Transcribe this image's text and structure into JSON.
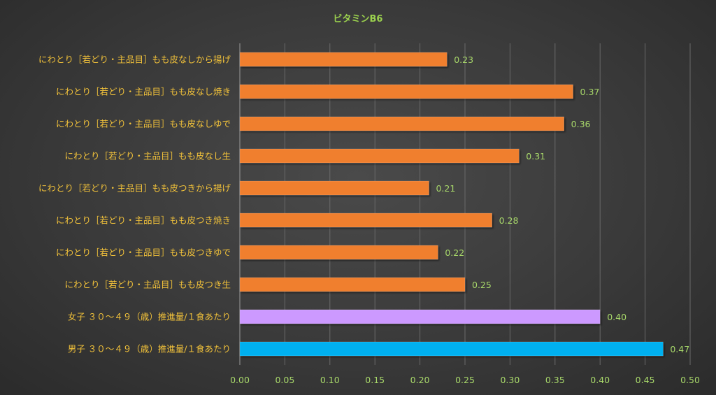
{
  "chart_data": {
    "type": "bar",
    "orientation": "horizontal",
    "title": "ビタミンB6",
    "categories": [
      "にわとり［若どり・主品目］もも皮なしから揚げ",
      "にわとり［若どり・主品目］もも皮なし焼き",
      "にわとり［若どり・主品目］もも皮なしゆで",
      "にわとり［若どり・主品目］もも皮なし生",
      "にわとり［若どり・主品目］もも皮つきから揚げ",
      "にわとり［若どり・主品目］もも皮つき焼き",
      "にわとり［若どり・主品目］もも皮つきゆで",
      "にわとり［若どり・主品目］もも皮つき生",
      "女子 ３０～４９（歳）推進量/１食あたり",
      "男子 ３０～４９（歳）推進量/１食あたり"
    ],
    "values": [
      0.23,
      0.37,
      0.36,
      0.31,
      0.21,
      0.28,
      0.22,
      0.25,
      0.4,
      0.47
    ],
    "value_labels": [
      "0.23",
      "0.37",
      "0.36",
      "0.31",
      "0.21",
      "0.28",
      "0.22",
      "0.25",
      "0.40",
      "0.47"
    ],
    "bar_colors": [
      "#f07f2f",
      "#f07f2f",
      "#f07f2f",
      "#f07f2f",
      "#f07f2f",
      "#f07f2f",
      "#f07f2f",
      "#f07f2f",
      "#cc99ff",
      "#00b0f0"
    ],
    "xlim": [
      0,
      0.5
    ],
    "xticks": [
      "0.00",
      "0.05",
      "0.10",
      "0.15",
      "0.20",
      "0.25",
      "0.30",
      "0.35",
      "0.40",
      "0.45",
      "0.50"
    ],
    "grid": true,
    "legend": "none"
  }
}
